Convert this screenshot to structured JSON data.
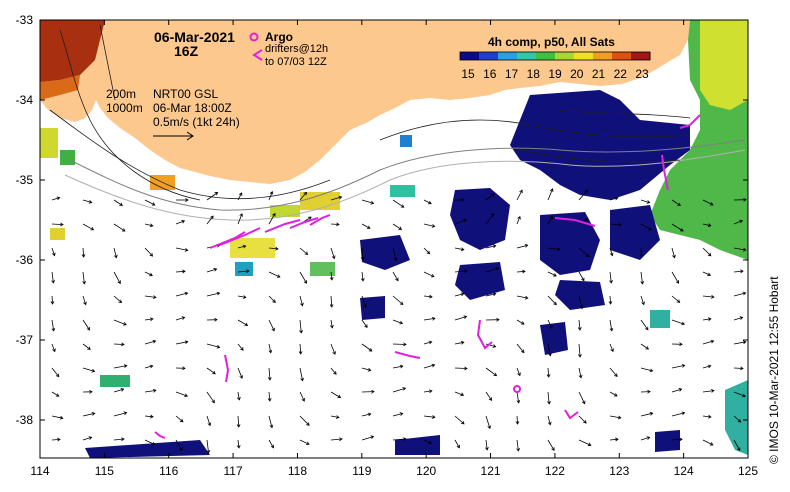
{
  "header": {
    "date": "06-Mar-2021",
    "hour": "16Z",
    "argo_label": "Argo",
    "drifters_label": "drifters@12h",
    "drifters_to": "to 07/03 12Z"
  },
  "legend": {
    "title": "4h comp, p50, All Sats",
    "ticks": [
      "15",
      "16",
      "17",
      "18",
      "19",
      "20",
      "21",
      "22",
      "23"
    ],
    "colors": [
      "#0a0a8a",
      "#1f3fd0",
      "#2aa0e0",
      "#30c8a8",
      "#40c040",
      "#a8d830",
      "#f0e020",
      "#f0a020",
      "#e05010",
      "#a01818"
    ]
  },
  "info": {
    "isobath_200": "200m",
    "isobath_1000": "1000m",
    "product": "NRT00 GSL",
    "valid_time": "06-Mar 18:00Z",
    "speed_scale": "0.5m/s (1kt 24h)"
  },
  "axes": {
    "x_ticks": [
      "114",
      "115",
      "116",
      "117",
      "118",
      "119",
      "120",
      "121",
      "122",
      "123",
      "124",
      "125"
    ],
    "y_ticks": [
      "-33",
      "-34",
      "-35",
      "-36",
      "-37",
      "-38"
    ]
  },
  "credit": "© IMOS 10-Mar-2021 12:55 Hobart"
}
